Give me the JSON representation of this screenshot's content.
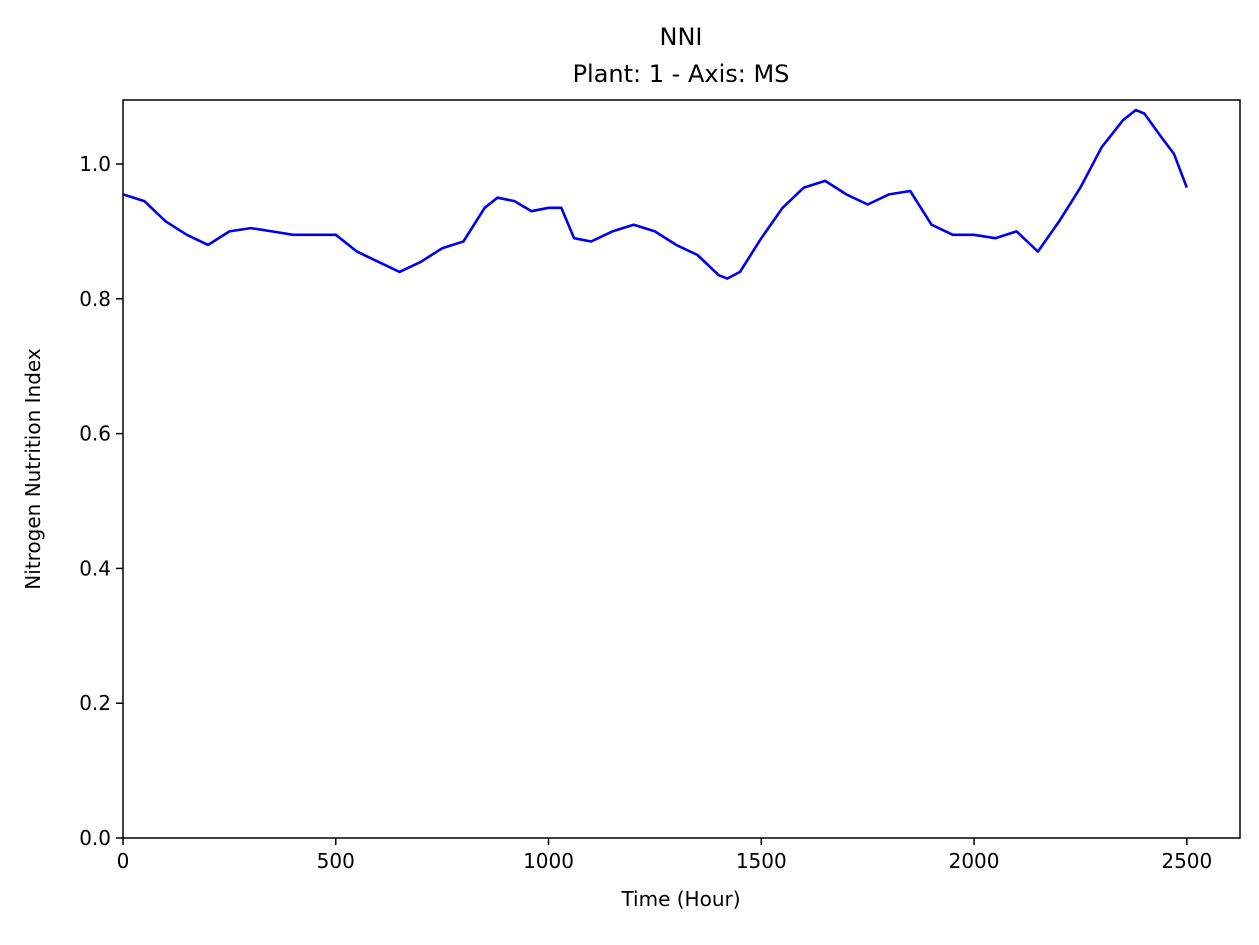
{
  "chart_data": {
    "type": "line",
    "title": "NNI",
    "subtitle": "Plant: 1 - Axis: MS",
    "xlabel": "Time (Hour)",
    "ylabel": "Nitrogen Nutrition Index",
    "xlim": [
      0,
      2625
    ],
    "ylim": [
      0,
      1.095
    ],
    "xticks": [
      0,
      500,
      1000,
      1500,
      2000,
      2500
    ],
    "xtick_labels": [
      "0",
      "500",
      "1000",
      "1500",
      "2000",
      "2500"
    ],
    "yticks": [
      0,
      0.2,
      0.4,
      0.6,
      0.8,
      1.0
    ],
    "ytick_labels": [
      "0.0",
      "0.2",
      "0.4",
      "0.6",
      "0.8",
      "1.0"
    ],
    "grid": false,
    "series": [
      {
        "color": "#0000ee",
        "x": [
          0,
          50,
          100,
          150,
          200,
          250,
          300,
          350,
          400,
          450,
          500,
          550,
          600,
          650,
          700,
          750,
          800,
          850,
          880,
          920,
          960,
          1000,
          1030,
          1060,
          1100,
          1150,
          1200,
          1250,
          1300,
          1350,
          1400,
          1420,
          1450,
          1500,
          1550,
          1600,
          1650,
          1700,
          1750,
          1800,
          1850,
          1900,
          1950,
          2000,
          2050,
          2100,
          2150,
          2200,
          2250,
          2300,
          2350,
          2380,
          2400,
          2440,
          2470,
          2500
        ],
        "y": [
          0.955,
          0.945,
          0.915,
          0.895,
          0.88,
          0.9,
          0.905,
          0.9,
          0.895,
          0.895,
          0.895,
          0.87,
          0.855,
          0.84,
          0.855,
          0.875,
          0.885,
          0.935,
          0.95,
          0.945,
          0.93,
          0.935,
          0.935,
          0.89,
          0.885,
          0.9,
          0.91,
          0.9,
          0.88,
          0.865,
          0.835,
          0.83,
          0.84,
          0.89,
          0.935,
          0.965,
          0.975,
          0.955,
          0.94,
          0.955,
          0.96,
          0.91,
          0.895,
          0.895,
          0.89,
          0.9,
          0.87,
          0.915,
          0.965,
          1.025,
          1.065,
          1.08,
          1.075,
          1.04,
          1.015,
          0.965
        ]
      }
    ]
  }
}
